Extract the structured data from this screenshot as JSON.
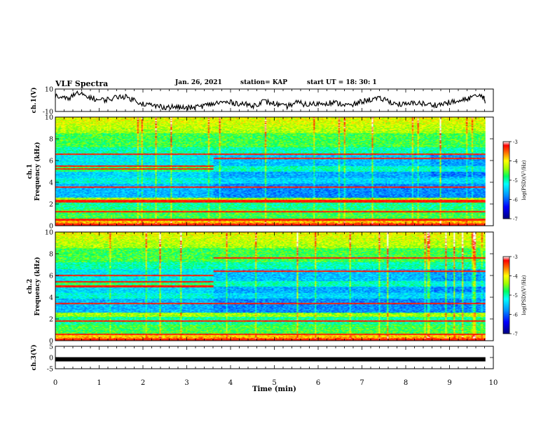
{
  "header": {
    "title": "VLF Spectra",
    "date": "Jan. 26, 2021",
    "station": "station= KAP",
    "start_ut": "start UT =  18: 30: 1"
  },
  "colors": {
    "axis": "#000000",
    "trace": "#000000",
    "colormap": [
      "#000080",
      "#0000ff",
      "#0080ff",
      "#00ffff",
      "#00ff80",
      "#80ff00",
      "#ffff00",
      "#ff8000",
      "#ff0000",
      "#e0e0e0"
    ]
  },
  "chart_data": [
    {
      "type": "line",
      "panel": "ch1-waveform",
      "ylabel": "ch.1(V)",
      "xlim": [
        0,
        10
      ],
      "ylim": [
        -10,
        10
      ],
      "yticks": [
        "10",
        "-10"
      ],
      "series": [
        {
          "x": [
            0,
            0.25,
            0.5,
            0.75,
            1,
            1.25,
            1.5,
            1.75,
            2,
            2.25,
            2.5,
            2.75,
            3,
            3.25,
            3.5,
            3.75,
            4,
            4.25,
            4.5,
            4.75,
            5,
            5.25,
            5.5,
            5.75,
            6,
            6.25,
            6.5,
            6.75,
            7,
            7.25,
            7.5,
            7.75,
            8,
            8.25,
            8.5,
            8.75,
            9,
            9.25,
            9.5,
            9.75,
            9.82
          ],
          "y": [
            4,
            1,
            6,
            3,
            0,
            1,
            4,
            1,
            -3,
            -5,
            -6,
            -6,
            -7,
            -6,
            -4,
            -2,
            -2,
            -3,
            -5,
            -1,
            -3,
            -6,
            -2,
            -4,
            -3,
            -2,
            -3,
            -5,
            -1,
            1,
            1,
            -3,
            -4,
            -2,
            -4,
            -4,
            -2,
            -1,
            3,
            4,
            -2
          ]
        }
      ]
    },
    {
      "type": "heatmap",
      "panel": "ch1-spectrogram",
      "ylabel": "ch.1\nFrequency (kHz)",
      "xlim": [
        0,
        9.82
      ],
      "ylim": [
        0,
        10
      ],
      "yticks": [
        "0",
        "2",
        "4",
        "6",
        "8",
        "10"
      ],
      "colorbar": {
        "label": "log(PSD)(V²/Hz)",
        "range": [
          -7,
          -3
        ],
        "ticks": [
          "-3",
          "-4",
          "-5",
          "-6",
          "-7"
        ]
      }
    },
    {
      "type": "heatmap",
      "panel": "ch2-spectrogram",
      "ylabel": "ch.2\nFrequency (kHz)",
      "xlim": [
        0,
        9.82
      ],
      "ylim": [
        0,
        10
      ],
      "yticks": [
        "0",
        "2",
        "4",
        "6",
        "8",
        "10"
      ],
      "colorbar": {
        "label": "log(PSD)(V²/Hz)",
        "range": [
          -7,
          -3
        ],
        "ticks": [
          "-3",
          "-4",
          "-5",
          "-6",
          "-7"
        ]
      }
    },
    {
      "type": "line",
      "panel": "ch3-waveform",
      "ylabel": "ch.3(V)",
      "xlabel": "Time (min)",
      "xlim": [
        0,
        10
      ],
      "ylim": [
        -5,
        5
      ],
      "yticks": [
        "5",
        "0",
        "-5"
      ],
      "xticks": [
        "0",
        "1",
        "2",
        "3",
        "4",
        "5",
        "6",
        "7",
        "8",
        "9",
        "10"
      ],
      "series": [
        {
          "x": [
            0,
            9.82
          ],
          "y": [
            -0.8,
            -0.8
          ]
        }
      ]
    }
  ]
}
